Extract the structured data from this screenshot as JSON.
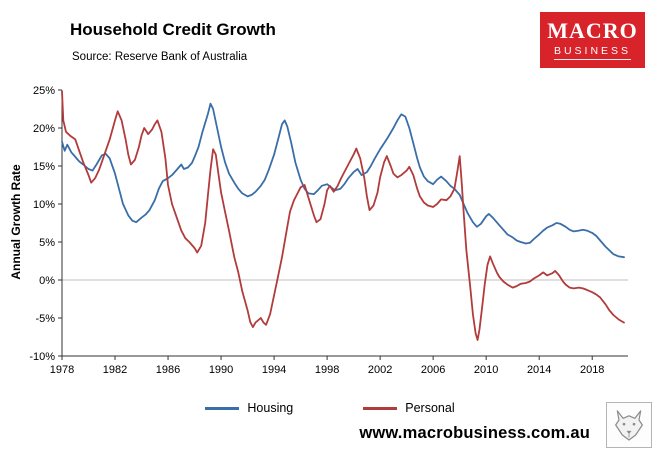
{
  "header": {
    "title": "Household Credit Growth",
    "subtitle": "Source: Reserve Bank of Australia"
  },
  "logo": {
    "line1": "MACRO",
    "line2": "BUSINESS",
    "color": "#d9232a"
  },
  "footer": {
    "website": "www.macrobusiness.com.au"
  },
  "chart_data": {
    "type": "line",
    "title": "Household Credit Growth",
    "subtitle": "Source: Reserve Bank of Australia",
    "xlabel": "",
    "ylabel": "Annual Growth Rate",
    "xlim": [
      1978,
      2020.7
    ],
    "ylim": [
      -10,
      25
    ],
    "x_ticks": [
      1978,
      1982,
      1986,
      1990,
      1994,
      1998,
      2002,
      2006,
      2010,
      2014,
      2018
    ],
    "y_ticks": [
      -10,
      -5,
      0,
      5,
      10,
      15,
      20,
      25
    ],
    "y_tick_suffix": "%",
    "grid": "zero-line-only",
    "legend_position": "bottom",
    "series": [
      {
        "name": "Housing",
        "color": "#3a6ea8",
        "points": [
          [
            1978.0,
            18.2
          ],
          [
            1978.2,
            17.0
          ],
          [
            1978.4,
            17.8
          ],
          [
            1978.7,
            16.8
          ],
          [
            1979.0,
            16.2
          ],
          [
            1979.3,
            15.6
          ],
          [
            1979.6,
            15.2
          ],
          [
            1980.0,
            14.6
          ],
          [
            1980.3,
            14.4
          ],
          [
            1980.6,
            15.2
          ],
          [
            1981.0,
            16.4
          ],
          [
            1981.3,
            16.6
          ],
          [
            1981.6,
            16.0
          ],
          [
            1982.0,
            14.0
          ],
          [
            1982.3,
            12.0
          ],
          [
            1982.6,
            10.0
          ],
          [
            1983.0,
            8.5
          ],
          [
            1983.3,
            7.8
          ],
          [
            1983.6,
            7.6
          ],
          [
            1984.0,
            8.2
          ],
          [
            1984.3,
            8.6
          ],
          [
            1984.6,
            9.2
          ],
          [
            1985.0,
            10.5
          ],
          [
            1985.3,
            12.0
          ],
          [
            1985.6,
            13.0
          ],
          [
            1986.0,
            13.4
          ],
          [
            1986.3,
            13.8
          ],
          [
            1986.6,
            14.4
          ],
          [
            1987.0,
            15.2
          ],
          [
            1987.2,
            14.6
          ],
          [
            1987.5,
            14.8
          ],
          [
            1987.8,
            15.4
          ],
          [
            1988.0,
            16.2
          ],
          [
            1988.3,
            17.5
          ],
          [
            1988.6,
            19.5
          ],
          [
            1989.0,
            21.8
          ],
          [
            1989.2,
            23.2
          ],
          [
            1989.4,
            22.5
          ],
          [
            1989.7,
            20.0
          ],
          [
            1990.0,
            17.5
          ],
          [
            1990.3,
            15.5
          ],
          [
            1990.6,
            14.0
          ],
          [
            1991.0,
            12.8
          ],
          [
            1991.3,
            12.0
          ],
          [
            1991.6,
            11.4
          ],
          [
            1992.0,
            11.0
          ],
          [
            1992.3,
            11.2
          ],
          [
            1992.6,
            11.6
          ],
          [
            1993.0,
            12.4
          ],
          [
            1993.3,
            13.2
          ],
          [
            1993.6,
            14.5
          ],
          [
            1994.0,
            16.5
          ],
          [
            1994.3,
            18.5
          ],
          [
            1994.6,
            20.5
          ],
          [
            1994.8,
            21.0
          ],
          [
            1995.0,
            20.2
          ],
          [
            1995.3,
            18.0
          ],
          [
            1995.6,
            15.5
          ],
          [
            1996.0,
            13.2
          ],
          [
            1996.3,
            12.0
          ],
          [
            1996.6,
            11.4
          ],
          [
            1997.0,
            11.3
          ],
          [
            1997.3,
            11.8
          ],
          [
            1997.6,
            12.4
          ],
          [
            1998.0,
            12.6
          ],
          [
            1998.3,
            12.2
          ],
          [
            1998.6,
            11.8
          ],
          [
            1999.0,
            12.0
          ],
          [
            1999.3,
            12.6
          ],
          [
            1999.6,
            13.4
          ],
          [
            2000.0,
            14.2
          ],
          [
            2000.3,
            14.6
          ],
          [
            2000.6,
            13.8
          ],
          [
            2001.0,
            14.2
          ],
          [
            2001.3,
            15.0
          ],
          [
            2001.6,
            16.0
          ],
          [
            2002.0,
            17.2
          ],
          [
            2002.3,
            18.0
          ],
          [
            2002.6,
            18.8
          ],
          [
            2003.0,
            20.0
          ],
          [
            2003.3,
            21.0
          ],
          [
            2003.6,
            21.8
          ],
          [
            2003.9,
            21.5
          ],
          [
            2004.2,
            20.0
          ],
          [
            2004.5,
            18.0
          ],
          [
            2004.8,
            16.0
          ],
          [
            2005.0,
            14.8
          ],
          [
            2005.3,
            13.6
          ],
          [
            2005.6,
            13.0
          ],
          [
            2006.0,
            12.6
          ],
          [
            2006.3,
            13.2
          ],
          [
            2006.6,
            13.6
          ],
          [
            2007.0,
            13.0
          ],
          [
            2007.3,
            12.4
          ],
          [
            2007.6,
            12.0
          ],
          [
            2008.0,
            11.2
          ],
          [
            2008.3,
            10.0
          ],
          [
            2008.6,
            8.8
          ],
          [
            2009.0,
            7.6
          ],
          [
            2009.3,
            7.0
          ],
          [
            2009.6,
            7.4
          ],
          [
            2010.0,
            8.4
          ],
          [
            2010.2,
            8.7
          ],
          [
            2010.5,
            8.2
          ],
          [
            2011.0,
            7.2
          ],
          [
            2011.3,
            6.6
          ],
          [
            2011.6,
            6.0
          ],
          [
            2012.0,
            5.6
          ],
          [
            2012.3,
            5.2
          ],
          [
            2012.6,
            5.0
          ],
          [
            2013.0,
            4.8
          ],
          [
            2013.3,
            4.9
          ],
          [
            2013.6,
            5.4
          ],
          [
            2014.0,
            6.0
          ],
          [
            2014.3,
            6.5
          ],
          [
            2014.6,
            6.9
          ],
          [
            2015.0,
            7.2
          ],
          [
            2015.3,
            7.5
          ],
          [
            2015.6,
            7.4
          ],
          [
            2016.0,
            7.0
          ],
          [
            2016.3,
            6.6
          ],
          [
            2016.6,
            6.4
          ],
          [
            2017.0,
            6.5
          ],
          [
            2017.3,
            6.6
          ],
          [
            2017.6,
            6.5
          ],
          [
            2018.0,
            6.2
          ],
          [
            2018.3,
            5.8
          ],
          [
            2018.6,
            5.2
          ],
          [
            2019.0,
            4.4
          ],
          [
            2019.3,
            3.9
          ],
          [
            2019.6,
            3.4
          ],
          [
            2020.0,
            3.1
          ],
          [
            2020.4,
            3.0
          ]
        ]
      },
      {
        "name": "Personal",
        "color": "#b23b3b",
        "points": [
          [
            1978.0,
            24.8
          ],
          [
            1978.1,
            21.0
          ],
          [
            1978.3,
            19.5
          ],
          [
            1978.6,
            19.0
          ],
          [
            1979.0,
            18.5
          ],
          [
            1979.3,
            17.0
          ],
          [
            1979.6,
            15.5
          ],
          [
            1980.0,
            13.8
          ],
          [
            1980.2,
            12.8
          ],
          [
            1980.5,
            13.4
          ],
          [
            1980.8,
            14.5
          ],
          [
            1981.0,
            15.5
          ],
          [
            1981.3,
            17.0
          ],
          [
            1981.6,
            18.5
          ],
          [
            1982.0,
            21.0
          ],
          [
            1982.2,
            22.2
          ],
          [
            1982.5,
            21.0
          ],
          [
            1982.8,
            18.5
          ],
          [
            1983.0,
            16.5
          ],
          [
            1983.2,
            15.2
          ],
          [
            1983.5,
            15.8
          ],
          [
            1983.8,
            17.5
          ],
          [
            1984.0,
            19.0
          ],
          [
            1984.2,
            20.0
          ],
          [
            1984.5,
            19.2
          ],
          [
            1984.8,
            19.8
          ],
          [
            1985.0,
            20.5
          ],
          [
            1985.2,
            21.0
          ],
          [
            1985.5,
            19.5
          ],
          [
            1985.8,
            16.0
          ],
          [
            1986.0,
            12.5
          ],
          [
            1986.3,
            10.0
          ],
          [
            1986.6,
            8.5
          ],
          [
            1987.0,
            6.5
          ],
          [
            1987.3,
            5.5
          ],
          [
            1987.6,
            5.0
          ],
          [
            1988.0,
            4.2
          ],
          [
            1988.2,
            3.6
          ],
          [
            1988.5,
            4.5
          ],
          [
            1988.8,
            7.5
          ],
          [
            1989.0,
            11.0
          ],
          [
            1989.2,
            14.5
          ],
          [
            1989.4,
            17.2
          ],
          [
            1989.6,
            16.5
          ],
          [
            1989.8,
            14.0
          ],
          [
            1990.0,
            11.5
          ],
          [
            1990.3,
            9.0
          ],
          [
            1990.6,
            6.5
          ],
          [
            1991.0,
            3.0
          ],
          [
            1991.3,
            1.0
          ],
          [
            1991.6,
            -1.5
          ],
          [
            1992.0,
            -4.0
          ],
          [
            1992.2,
            -5.5
          ],
          [
            1992.4,
            -6.2
          ],
          [
            1992.6,
            -5.6
          ],
          [
            1993.0,
            -5.0
          ],
          [
            1993.2,
            -5.6
          ],
          [
            1993.4,
            -5.9
          ],
          [
            1993.7,
            -4.5
          ],
          [
            1994.0,
            -2.0
          ],
          [
            1994.3,
            0.5
          ],
          [
            1994.6,
            3.0
          ],
          [
            1995.0,
            7.0
          ],
          [
            1995.2,
            9.0
          ],
          [
            1995.5,
            10.5
          ],
          [
            1995.8,
            11.5
          ],
          [
            1996.0,
            12.2
          ],
          [
            1996.3,
            12.5
          ],
          [
            1996.6,
            10.8
          ],
          [
            1997.0,
            8.5
          ],
          [
            1997.2,
            7.6
          ],
          [
            1997.5,
            8.0
          ],
          [
            1997.8,
            10.0
          ],
          [
            1998.0,
            11.8
          ],
          [
            1998.2,
            12.4
          ],
          [
            1998.5,
            11.6
          ],
          [
            1998.8,
            12.4
          ],
          [
            1999.0,
            13.2
          ],
          [
            1999.3,
            14.2
          ],
          [
            1999.6,
            15.2
          ],
          [
            2000.0,
            16.5
          ],
          [
            2000.2,
            17.3
          ],
          [
            2000.5,
            16.0
          ],
          [
            2000.8,
            13.5
          ],
          [
            2001.0,
            11.0
          ],
          [
            2001.2,
            9.2
          ],
          [
            2001.5,
            9.8
          ],
          [
            2001.8,
            11.5
          ],
          [
            2002.0,
            13.5
          ],
          [
            2002.3,
            15.5
          ],
          [
            2002.5,
            16.3
          ],
          [
            2002.8,
            15.0
          ],
          [
            2003.0,
            14.0
          ],
          [
            2003.3,
            13.5
          ],
          [
            2003.6,
            13.8
          ],
          [
            2004.0,
            14.4
          ],
          [
            2004.2,
            14.9
          ],
          [
            2004.5,
            13.8
          ],
          [
            2004.8,
            12.0
          ],
          [
            2005.0,
            11.0
          ],
          [
            2005.3,
            10.2
          ],
          [
            2005.6,
            9.8
          ],
          [
            2006.0,
            9.6
          ],
          [
            2006.3,
            10.0
          ],
          [
            2006.6,
            10.6
          ],
          [
            2007.0,
            10.5
          ],
          [
            2007.3,
            11.0
          ],
          [
            2007.6,
            12.0
          ],
          [
            2007.8,
            14.0
          ],
          [
            2008.0,
            16.3
          ],
          [
            2008.15,
            13.0
          ],
          [
            2008.3,
            9.0
          ],
          [
            2008.5,
            4.0
          ],
          [
            2008.8,
            -1.0
          ],
          [
            2009.0,
            -4.5
          ],
          [
            2009.2,
            -7.0
          ],
          [
            2009.35,
            -7.9
          ],
          [
            2009.5,
            -6.5
          ],
          [
            2009.7,
            -3.5
          ],
          [
            2009.9,
            -0.5
          ],
          [
            2010.1,
            2.0
          ],
          [
            2010.3,
            3.1
          ],
          [
            2010.5,
            2.2
          ],
          [
            2010.8,
            1.0
          ],
          [
            2011.0,
            0.4
          ],
          [
            2011.3,
            -0.2
          ],
          [
            2011.6,
            -0.6
          ],
          [
            2012.0,
            -1.0
          ],
          [
            2012.3,
            -0.8
          ],
          [
            2012.6,
            -0.5
          ],
          [
            2013.0,
            -0.4
          ],
          [
            2013.3,
            -0.2
          ],
          [
            2013.6,
            0.2
          ],
          [
            2014.0,
            0.6
          ],
          [
            2014.3,
            1.0
          ],
          [
            2014.6,
            0.6
          ],
          [
            2015.0,
            0.9
          ],
          [
            2015.2,
            1.2
          ],
          [
            2015.5,
            0.6
          ],
          [
            2015.8,
            -0.2
          ],
          [
            2016.0,
            -0.6
          ],
          [
            2016.3,
            -1.0
          ],
          [
            2016.6,
            -1.1
          ],
          [
            2017.0,
            -1.0
          ],
          [
            2017.3,
            -1.1
          ],
          [
            2017.6,
            -1.3
          ],
          [
            2018.0,
            -1.6
          ],
          [
            2018.3,
            -1.9
          ],
          [
            2018.6,
            -2.3
          ],
          [
            2019.0,
            -3.2
          ],
          [
            2019.3,
            -4.0
          ],
          [
            2019.6,
            -4.6
          ],
          [
            2020.0,
            -5.2
          ],
          [
            2020.4,
            -5.6
          ]
        ]
      }
    ]
  }
}
